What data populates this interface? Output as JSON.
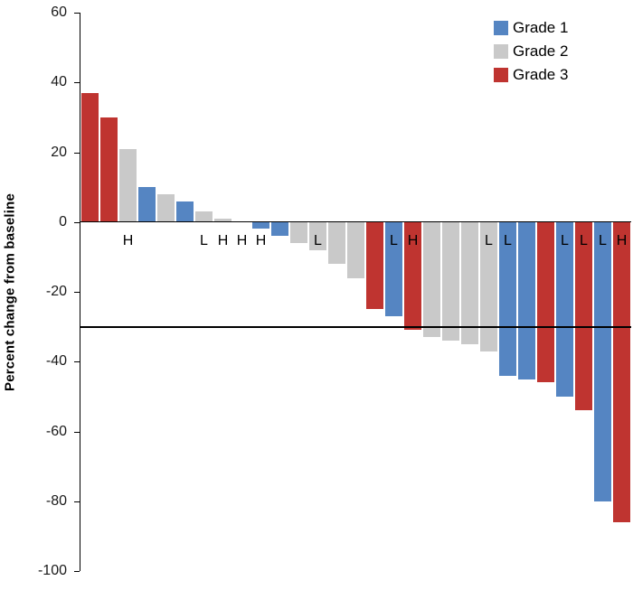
{
  "chart_data": {
    "type": "bar",
    "subtype": "waterfall",
    "title": "",
    "xlabel": "",
    "ylabel": "Percent change from baseline",
    "ylim": [
      -100,
      60
    ],
    "yticks": [
      60,
      40,
      20,
      0,
      -20,
      -40,
      -60,
      -80,
      -100
    ],
    "grid": false,
    "legend_position": "top-right",
    "reference_line": -30,
    "reference_line_color": "#000000",
    "legend": [
      {
        "label": "Grade 1",
        "color": "#5585C2"
      },
      {
        "label": "Grade 2",
        "color": "#C9C9C9"
      },
      {
        "label": "Grade 3",
        "color": "#BF3430"
      }
    ],
    "bars": [
      {
        "value": 37,
        "grade": 3,
        "label": ""
      },
      {
        "value": 30,
        "grade": 3,
        "label": ""
      },
      {
        "value": 21,
        "grade": 2,
        "label": "H"
      },
      {
        "value": 10,
        "grade": 1,
        "label": ""
      },
      {
        "value": 8,
        "grade": 2,
        "label": ""
      },
      {
        "value": 6,
        "grade": 1,
        "label": ""
      },
      {
        "value": 3,
        "grade": 2,
        "label": "L"
      },
      {
        "value": 1,
        "grade": 2,
        "label": "H"
      },
      {
        "value": 0,
        "grade": 2,
        "label": "H"
      },
      {
        "value": -2,
        "grade": 1,
        "label": "H"
      },
      {
        "value": -4,
        "grade": 1,
        "label": ""
      },
      {
        "value": -6,
        "grade": 2,
        "label": ""
      },
      {
        "value": -8,
        "grade": 2,
        "label": "L"
      },
      {
        "value": -12,
        "grade": 2,
        "label": ""
      },
      {
        "value": -16,
        "grade": 2,
        "label": ""
      },
      {
        "value": -25,
        "grade": 3,
        "label": ""
      },
      {
        "value": -27,
        "grade": 1,
        "label": "L"
      },
      {
        "value": -31,
        "grade": 3,
        "label": "H"
      },
      {
        "value": -33,
        "grade": 2,
        "label": ""
      },
      {
        "value": -34,
        "grade": 2,
        "label": ""
      },
      {
        "value": -35,
        "grade": 2,
        "label": ""
      },
      {
        "value": -37,
        "grade": 2,
        "label": "L"
      },
      {
        "value": -44,
        "grade": 1,
        "label": "L"
      },
      {
        "value": -45,
        "grade": 1,
        "label": ""
      },
      {
        "value": -46,
        "grade": 3,
        "label": ""
      },
      {
        "value": -50,
        "grade": 1,
        "label": "L"
      },
      {
        "value": -54,
        "grade": 3,
        "label": "L"
      },
      {
        "value": -80,
        "grade": 1,
        "label": "L"
      },
      {
        "value": -86,
        "grade": 3,
        "label": "H"
      }
    ]
  }
}
